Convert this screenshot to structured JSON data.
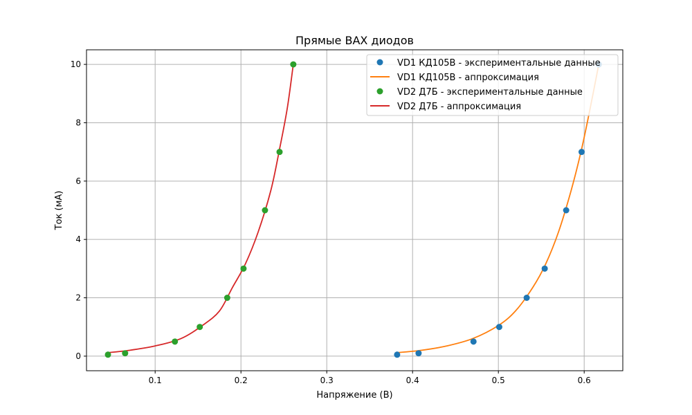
{
  "chart_data": {
    "type": "line",
    "title": "Прямые ВАХ диодов",
    "xlabel": "Напряжение (В)",
    "ylabel": "Ток (мА)",
    "xlim": [
      0.02,
      0.645
    ],
    "ylim": [
      -0.5,
      10.5
    ],
    "xticks": [
      {
        "value": 0.1,
        "label": "0.1"
      },
      {
        "value": 0.2,
        "label": "0.2"
      },
      {
        "value": 0.3,
        "label": "0.3"
      },
      {
        "value": 0.4,
        "label": "0.4"
      },
      {
        "value": 0.5,
        "label": "0.5"
      },
      {
        "value": 0.6,
        "label": "0.6"
      }
    ],
    "yticks": [
      {
        "value": 0,
        "label": "0"
      },
      {
        "value": 2,
        "label": "2"
      },
      {
        "value": 4,
        "label": "4"
      },
      {
        "value": 6,
        "label": "6"
      },
      {
        "value": 8,
        "label": "8"
      },
      {
        "value": 10,
        "label": "10"
      }
    ],
    "grid": true,
    "legend_position": "top-right",
    "series": [
      {
        "name": "VD1 КД105В - экспериментальные данные",
        "kind": "scatter",
        "color": "#1f77b4",
        "x": [
          0.382,
          0.407,
          0.471,
          0.501,
          0.533,
          0.554,
          0.579,
          0.597,
          0.617
        ],
        "y": [
          0.05,
          0.1,
          0.5,
          1.0,
          2.0,
          3.0,
          5.0,
          7.0,
          10.0
        ]
      },
      {
        "name": "VD1 КД105В - аппроксимация",
        "kind": "line",
        "color": "#ff7f0e",
        "x": [
          0.382,
          0.41,
          0.44,
          0.47,
          0.5,
          0.52,
          0.54,
          0.555,
          0.57,
          0.585,
          0.597,
          0.607,
          0.617
        ],
        "y": [
          0.12,
          0.2,
          0.35,
          0.6,
          1.05,
          1.55,
          2.35,
          3.15,
          4.25,
          5.7,
          7.1,
          8.5,
          10.0
        ]
      },
      {
        "name": "VD2 Д7Б - экспериментальные данные",
        "kind": "scatter",
        "color": "#2ca02c",
        "x": [
          0.045,
          0.065,
          0.123,
          0.152,
          0.184,
          0.203,
          0.228,
          0.245,
          0.261
        ],
        "y": [
          0.05,
          0.1,
          0.5,
          1.0,
          2.0,
          3.0,
          5.0,
          7.0,
          10.0
        ]
      },
      {
        "name": "VD2 Д7Б - аппроксимация",
        "kind": "line",
        "color": "#d62728",
        "x": [
          0.045,
          0.07,
          0.1,
          0.13,
          0.155,
          0.175,
          0.19,
          0.205,
          0.22,
          0.235,
          0.245,
          0.254,
          0.261
        ],
        "y": [
          0.12,
          0.2,
          0.35,
          0.6,
          1.05,
          1.55,
          2.35,
          3.15,
          4.25,
          5.7,
          7.1,
          8.5,
          10.0
        ]
      }
    ]
  }
}
